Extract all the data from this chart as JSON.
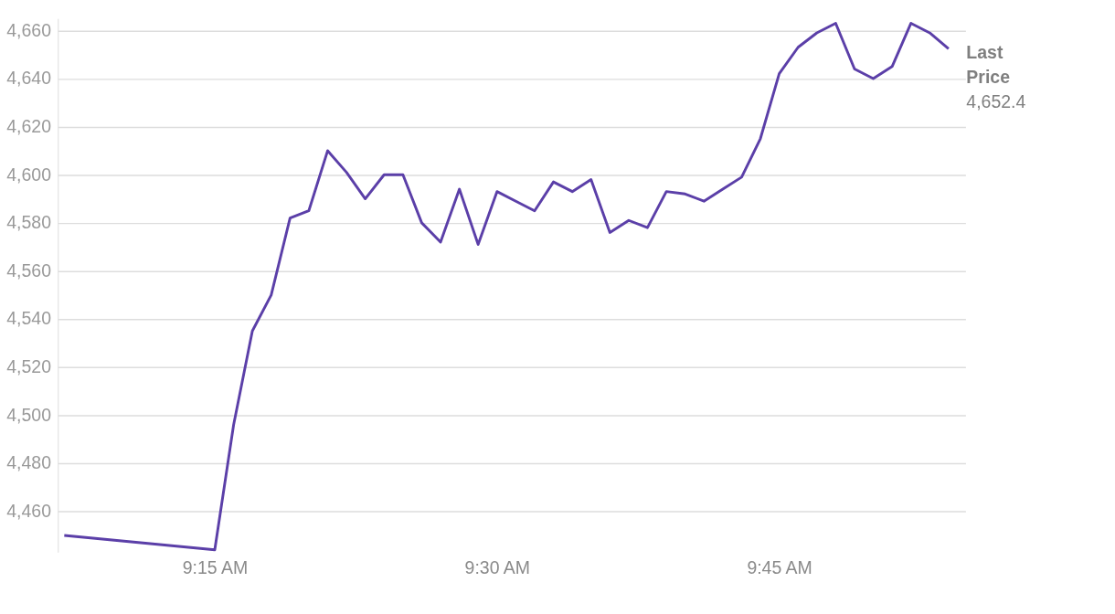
{
  "chart_data": {
    "type": "line",
    "x": [
      9.1167,
      9.25,
      9.2667,
      9.2833,
      9.3,
      9.3167,
      9.3333,
      9.35,
      9.3667,
      9.3833,
      9.4,
      9.4167,
      9.4333,
      9.45,
      9.4667,
      9.4833,
      9.5,
      9.5167,
      9.5333,
      9.55,
      9.5667,
      9.5833,
      9.6,
      9.6167,
      9.6333,
      9.65,
      9.6667,
      9.6833,
      9.7,
      9.7167,
      9.7333,
      9.75,
      9.7667,
      9.7833,
      9.8,
      9.8167,
      9.8333,
      9.85,
      9.8667,
      9.8833,
      9.9
    ],
    "series": [
      {
        "color": "#5b3fa8",
        "values": [
          4450,
          4444,
          4496,
          4535,
          4550,
          4582,
          4585,
          4610,
          4601,
          4590,
          4600,
          4600,
          4580,
          4572,
          4594,
          4571,
          4593,
          4589,
          4585,
          4597,
          4593,
          4598,
          4576,
          4581,
          4578,
          4593,
          4592,
          4589,
          4594,
          4599,
          4615,
          4642,
          4653,
          4659,
          4663,
          4644,
          4640,
          4645,
          4663,
          4659,
          4652.4
        ]
      }
    ],
    "xlim": [
      9.111,
      9.915
    ],
    "xticks": [
      {
        "value": 9.25,
        "label": "9:15 AM"
      },
      {
        "value": 9.5,
        "label": "9:30 AM"
      },
      {
        "value": 9.75,
        "label": "9:45 AM"
      }
    ],
    "ylim": [
      4443,
      4665
    ],
    "yticks": [
      {
        "value": 4460,
        "label": "4,460"
      },
      {
        "value": 4480,
        "label": "4,480"
      },
      {
        "value": 4500,
        "label": "4,500"
      },
      {
        "value": 4520,
        "label": "4,520"
      },
      {
        "value": 4540,
        "label": "4,540"
      },
      {
        "value": 4560,
        "label": "4,560"
      },
      {
        "value": 4580,
        "label": "4,580"
      },
      {
        "value": 4600,
        "label": "4,600"
      },
      {
        "value": 4620,
        "label": "4,620"
      },
      {
        "value": 4640,
        "label": "4,640"
      },
      {
        "value": 4660,
        "label": "4,660"
      }
    ],
    "grid": "y",
    "marker": "none",
    "line_style": "solid",
    "annotations": [
      "Last Price",
      "4,652.4"
    ]
  }
}
